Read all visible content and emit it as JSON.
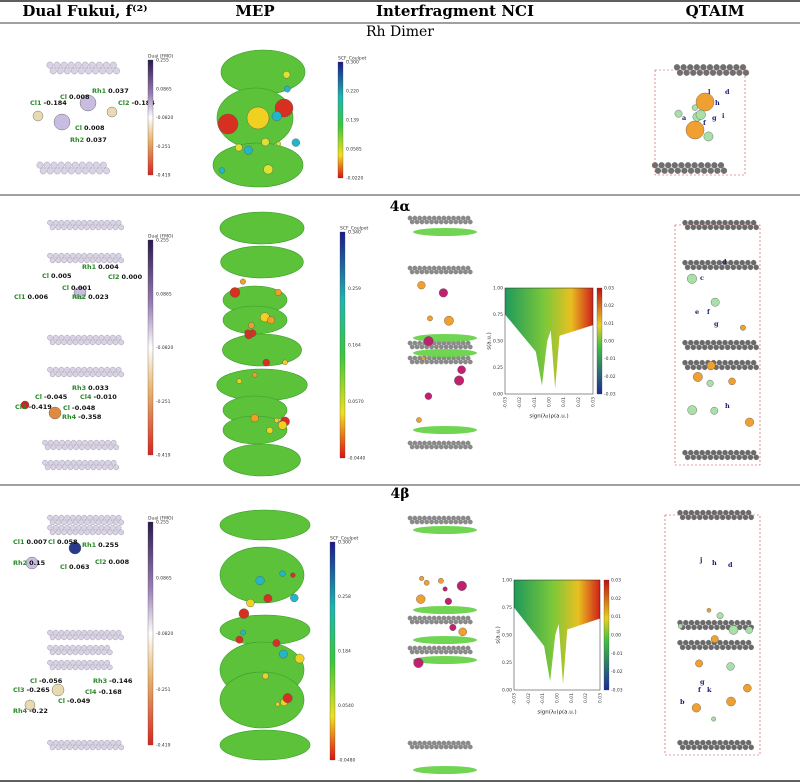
{
  "header": [
    "Dual Fukui, f⁽²⁾",
    "MEP",
    "Interfragment NCI",
    "QTAIM"
  ],
  "sections": [
    {
      "title": "Rh Dimer",
      "fukui_labels": [
        {
          "atom": "Cl1",
          "value": "-0.184"
        },
        {
          "atom": "Cl",
          "value": "0.008"
        },
        {
          "atom": "Rh1",
          "value": "0.037"
        },
        {
          "atom": "Cl2",
          "value": "-0.184"
        },
        {
          "atom": "Cl",
          "value": "0.008"
        },
        {
          "atom": "Rh2",
          "value": "0.037"
        }
      ],
      "fukui_colorbar": {
        "title": "Dual (FMO)",
        "ticks": [
          "0.255",
          "0.0865",
          "-0.0820",
          "-0.251",
          "-0.419"
        ]
      },
      "mep_colorbar": {
        "title": "SCF_Coulpot",
        "ticks": [
          "0.300",
          "0.220",
          "0.139",
          "0.0585",
          "-0.0220"
        ]
      },
      "qtaim_labels": [
        "a",
        "f",
        "g",
        "l",
        "h",
        "i",
        "d"
      ]
    },
    {
      "title": "4α",
      "fukui_labels": [
        {
          "atom": "Rh1",
          "value": "0.004"
        },
        {
          "atom": "Cl",
          "value": "0.005"
        },
        {
          "atom": "Cl2",
          "value": "0.000"
        },
        {
          "atom": "Cl",
          "value": "0.001"
        },
        {
          "atom": "Cl1",
          "value": "0.006"
        },
        {
          "atom": "Rh2",
          "value": "0.023"
        },
        {
          "atom": "Rh3",
          "value": "0.033"
        },
        {
          "atom": "Cl",
          "value": "-0.045"
        },
        {
          "atom": "Cl4",
          "value": "-0.010"
        },
        {
          "atom": "Cl3",
          "value": "-0.419"
        },
        {
          "atom": "Cl",
          "value": "-0.048"
        },
        {
          "atom": "Rh4",
          "value": "-0.358"
        }
      ],
      "fukui_colorbar": {
        "title": "Dual (FMO)",
        "ticks": [
          "0.255",
          "0.0865",
          "-0.0820",
          "-0.251",
          "-0.419"
        ]
      },
      "mep_colorbar": {
        "title": "SCF_Coulpot",
        "ticks": [
          "0.340",
          "0.259",
          "0.164",
          "0.0570",
          "-0.0440"
        ]
      },
      "nci_plot": {
        "ylabel": "s(a.u.)",
        "xlabel": "sign(λ₂)ρ(a.u.)",
        "yticks": [
          "1.00",
          "0.75",
          "0.50",
          "0.25",
          "0.00"
        ],
        "xticks": [
          "-0.03",
          "-0.02",
          "-0.01",
          "0.00",
          "0.01",
          "0.02",
          "0.03"
        ],
        "cticks": [
          "0.03",
          "0.02",
          "0.01",
          "0.00",
          "-0.01",
          "-0.02",
          "-0.03"
        ]
      },
      "qtaim_labels": [
        "c",
        "d",
        "e",
        "f",
        "g",
        "h"
      ]
    },
    {
      "title": "4β",
      "fukui_labels": [
        {
          "atom": "Cl1",
          "value": "0.007"
        },
        {
          "atom": "Cl",
          "value": "0.058"
        },
        {
          "atom": "Rh1",
          "value": "0.255"
        },
        {
          "atom": "Rh2",
          "value": "0.15"
        },
        {
          "atom": "Cl",
          "value": "0.063"
        },
        {
          "atom": "Cl2",
          "value": "0.008"
        },
        {
          "atom": "Cl",
          "value": "-0.056"
        },
        {
          "atom": "Rh3",
          "value": "-0.146"
        },
        {
          "atom": "Cl3",
          "value": "-0.265"
        },
        {
          "atom": "Cl4",
          "value": "-0.168"
        },
        {
          "atom": "Cl",
          "value": "-0.049"
        },
        {
          "atom": "Rh4",
          "value": "-0.22"
        }
      ],
      "fukui_colorbar": {
        "title": "Dual (FMO)",
        "ticks": [
          "0.255",
          "0.0865",
          "-0.0820",
          "-0.251",
          "-0.419"
        ]
      },
      "mep_colorbar": {
        "title": "SCF_Coulpot",
        "ticks": [
          "0.300",
          "0.258",
          "0.184",
          "0.0540",
          "-0.0480"
        ]
      },
      "nci_plot": {
        "ylabel": "s(a.u.)",
        "xlabel": "sign(λ₂)ρ(a.u.)",
        "yticks": [
          "1.00",
          "0.75",
          "0.50",
          "0.25",
          "0.00"
        ],
        "xticks": [
          "-0.03",
          "-0.02",
          "-0.01",
          "0.00",
          "0.01",
          "0.02",
          "0.03"
        ],
        "cticks": [
          "0.03",
          "0.02",
          "0.01",
          "0.00",
          "-0.01",
          "-0.02",
          "-0.03"
        ]
      },
      "qtaim_labels": [
        "b",
        "f",
        "g",
        "h",
        "j",
        "k",
        "d"
      ]
    }
  ]
}
